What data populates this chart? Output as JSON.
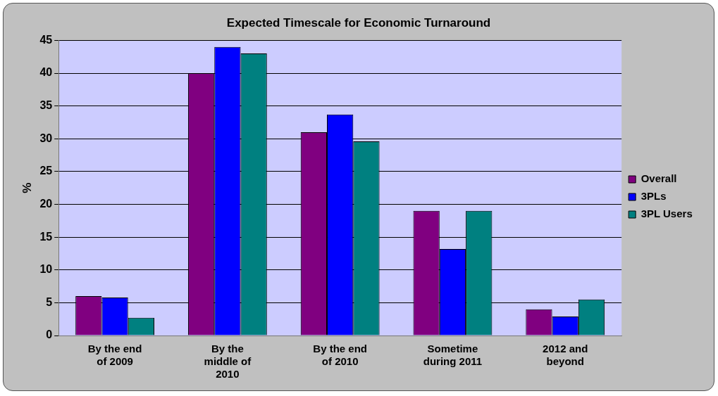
{
  "chart_data": {
    "type": "bar",
    "title": "Expected Timescale for Economic Turnaround",
    "ylabel": "%",
    "categories": [
      "By the end of 2009",
      "By the middle of 2010",
      "By the end of 2010",
      "Sometime during 2011",
      "2012 and beyond"
    ],
    "series": [
      {
        "name": "Overall",
        "color": "#800080",
        "values": [
          6,
          40,
          31,
          19,
          4
        ]
      },
      {
        "name": "3PLs",
        "color": "#0000ff",
        "values": [
          5.8,
          44,
          33.7,
          13.2,
          2.9
        ]
      },
      {
        "name": "3PL Users",
        "color": "#008080",
        "values": [
          2.7,
          43,
          29.6,
          19,
          5.5
        ]
      }
    ],
    "ylim": [
      0,
      45
    ],
    "yticks": [
      0,
      5,
      10,
      15,
      20,
      25,
      30,
      35,
      40,
      45
    ],
    "grid": "y",
    "legend": "right"
  }
}
